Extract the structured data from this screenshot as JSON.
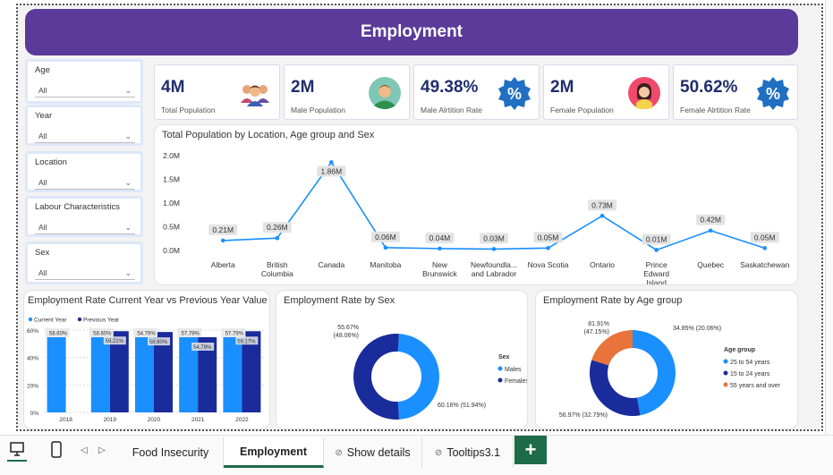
{
  "banner": {
    "title": "Employment"
  },
  "slicers": [
    {
      "label": "Age",
      "value": "All"
    },
    {
      "label": "Year",
      "value": "All"
    },
    {
      "label": "Location",
      "value": "All"
    },
    {
      "label": "Labour Characteristics",
      "value": "All"
    },
    {
      "label": "Sex",
      "value": "All"
    }
  ],
  "cards": [
    {
      "value": "4M",
      "caption": "Total Population",
      "icon": "group-people-icon"
    },
    {
      "value": "2M",
      "caption": "Male Population",
      "icon": "man-avatar-icon"
    },
    {
      "value": "49.38%",
      "caption": "Male Alrtition Rate",
      "icon": "percent-badge-icon"
    },
    {
      "value": "2M",
      "caption": "Female Population",
      "icon": "woman-avatar-icon"
    },
    {
      "value": "50.62%",
      "caption": "Female Alrtition Rate",
      "icon": "percent-badge-icon"
    }
  ],
  "colors": {
    "banner": "#5b3a99",
    "line": "#1a8fff",
    "current": "#1a8fff",
    "previous": "#1a2b9b",
    "orange": "#e8743b",
    "navy": "#1f2e6b"
  },
  "chart_data": [
    {
      "type": "line",
      "title": "Total Population by Location, Age group and Sex",
      "categories": [
        "Alberta",
        "British Columbia",
        "Canada",
        "Manitoba",
        "New Brunswick",
        "Newfoundla... and Labrador",
        "Nova Scotia",
        "Ontario",
        "Prince Edward Island",
        "Quebec",
        "Saskatchewan"
      ],
      "values": [
        0.21,
        0.26,
        1.86,
        0.06,
        0.04,
        0.03,
        0.05,
        0.73,
        0.01,
        0.42,
        0.05
      ],
      "labels": [
        "0.21M",
        "0.26M",
        "1.86M",
        "0.06M",
        "0.04M",
        "0.03M",
        "0.05M",
        "0.73M",
        "0.01M",
        "0.42M",
        "0.05M"
      ],
      "yticks": [
        "2.0M",
        "1.5M",
        "1.0M",
        "0.5M",
        "0.0M"
      ],
      "ylim": [
        0,
        2.0
      ]
    },
    {
      "type": "bar",
      "title": "Employment Rate Current Year vs Previous Year Value",
      "categories": [
        "2018",
        "2019",
        "2020",
        "2021",
        "2022"
      ],
      "series": [
        {
          "name": "Current Year",
          "values": [
            58.6,
            58.6,
            54.79,
            57.79,
            57.79
          ],
          "labels": [
            "58.60%",
            "58.60%",
            "54.79%",
            "57.79%",
            "57.79%"
          ]
        },
        {
          "name": "Previous Year",
          "values": [
            null,
            59.21,
            58.6,
            54.79,
            59.17
          ],
          "labels": [
            "",
            "59.21%",
            "58.60%",
            "54.79%",
            "59.17%"
          ]
        }
      ],
      "yticks": [
        "60%",
        "40%",
        "20%",
        "0%"
      ],
      "ylim": [
        0,
        60
      ],
      "legend": "top-left"
    },
    {
      "type": "pie",
      "title": "Employment Rate by Sex",
      "legend_title": "Sex",
      "slices": [
        {
          "name": "Males",
          "value": 48.06,
          "label_top": "55.67%",
          "label_bot": "(48.06%)"
        },
        {
          "name": "Females",
          "value": 51.94,
          "label_top": "60.16% (51.94%)",
          "label_bot": ""
        }
      ]
    },
    {
      "type": "pie",
      "title": "Employment Rate by Age group",
      "legend_title": "Age group",
      "slices": [
        {
          "name": "25 to 54 years",
          "value": 47.15,
          "label_top": "81.91%",
          "label_bot": "(47.15%)"
        },
        {
          "name": "15 to 24 years",
          "value": 32.79,
          "label_top": "56.97% (32.79%)",
          "label_bot": ""
        },
        {
          "name": "55 years and over",
          "value": 20.06,
          "label_top": "34.85% (20.06%)",
          "label_bot": ""
        }
      ]
    }
  ],
  "tabs": [
    "Food Insecurity",
    "Employment",
    "Show details",
    "Tooltips3.1"
  ],
  "add_tab": "+"
}
